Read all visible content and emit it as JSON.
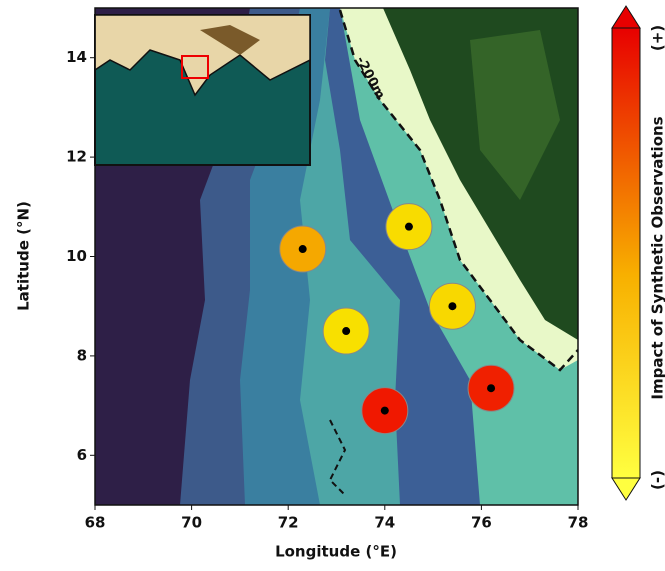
{
  "chart_data": {
    "type": "scatter",
    "x_label": "Longitude (°E)",
    "y_label": "Latitude (°N)",
    "x": [
      72.3,
      74.5,
      73.2,
      75.4,
      74.0,
      76.2
    ],
    "y": [
      10.15,
      10.6,
      8.5,
      9.0,
      6.9,
      7.35
    ],
    "colors": [
      "#f5a800",
      "#f8dc00",
      "#f8e000",
      "#f8d800",
      "#f01800",
      "#f02000"
    ],
    "xlim": [
      68,
      78
    ],
    "xticks": [
      68,
      70,
      72,
      74,
      76,
      78
    ],
    "ylim": [
      5,
      15
    ],
    "yticks": [
      6,
      8,
      10,
      12,
      14
    ],
    "annotation": "-200m",
    "colorbar": {
      "label": "Impact of Synthetic Observations",
      "low_label": "(-)",
      "high_label": "(+)"
    }
  }
}
